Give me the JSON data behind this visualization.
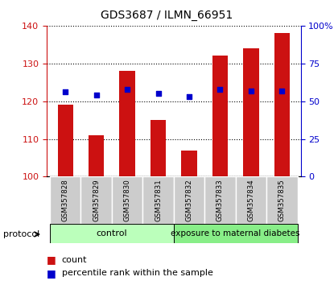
{
  "title": "GDS3687 / ILMN_66951",
  "samples": [
    "GSM357828",
    "GSM357829",
    "GSM357830",
    "GSM357831",
    "GSM357832",
    "GSM357833",
    "GSM357834",
    "GSM357835"
  ],
  "counts": [
    119,
    111,
    128,
    115,
    107,
    132,
    134,
    138
  ],
  "percentiles": [
    56,
    54,
    58,
    55,
    53,
    58,
    57,
    57
  ],
  "ylim_left": [
    100,
    140
  ],
  "ylim_right": [
    0,
    100
  ],
  "bar_color": "#cc1111",
  "dot_color": "#0000cc",
  "bg_label": "#cccccc",
  "bg_control": "#bbffbb",
  "bg_diabetes": "#88ee88",
  "control_label": "control",
  "diabetes_label": "exposure to maternal diabetes",
  "protocol_label": "protocol",
  "legend_count": "count",
  "legend_percentile": "percentile rank within the sample",
  "left_ticks": [
    100,
    110,
    120,
    130,
    140
  ],
  "right_ticks": [
    0,
    25,
    50,
    75,
    100
  ],
  "right_tick_labels": [
    "0",
    "25",
    "50",
    "75",
    "100%"
  ],
  "n_control": 4,
  "n_diabetes": 4
}
